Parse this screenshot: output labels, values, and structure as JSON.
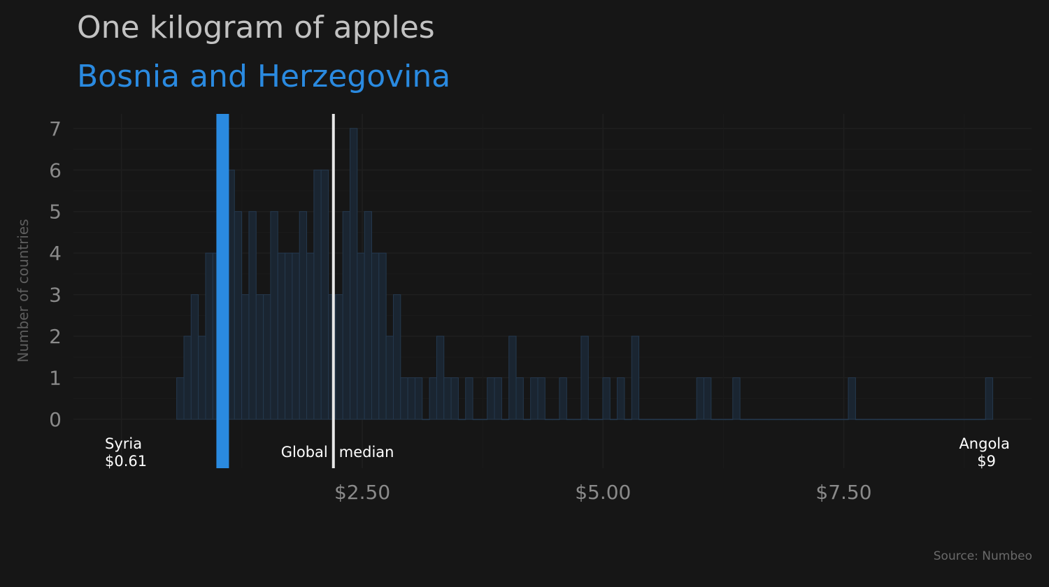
{
  "title": "One kilogram of apples",
  "subtitle": "Bosnia and Herzegovina",
  "source": "Source: Numbeo",
  "colors": {
    "background": "#161616",
    "bar_fill": "#1a2531",
    "bar_stroke": "#24384d",
    "highlight": "#2a8ae0",
    "median": "#e8e8e8",
    "grid": "#1f1f1f",
    "text": "#8a8a8a"
  },
  "chart_data": {
    "type": "bar",
    "title": "One kilogram of apples",
    "subtitle": "Bosnia and Herzegovina",
    "xlabel": "",
    "ylabel": "Number of countries",
    "x_ticks": [
      2.5,
      5.0,
      7.5
    ],
    "x_tick_labels": [
      "$2.50",
      "$5.00",
      "$7.50"
    ],
    "y_ticks": [
      0,
      1,
      2,
      3,
      4,
      5,
      6,
      7
    ],
    "xlim": [
      -0.5,
      9.45
    ],
    "ylim": [
      0,
      7.35
    ],
    "bin_width": 0.075,
    "x": [
      0.61,
      0.685,
      0.76,
      0.835,
      0.91,
      0.985,
      1.06,
      1.135,
      1.21,
      1.285,
      1.36,
      1.435,
      1.51,
      1.585,
      1.66,
      1.735,
      1.81,
      1.885,
      1.96,
      2.035,
      2.11,
      2.185,
      2.26,
      2.335,
      2.41,
      2.485,
      2.56,
      2.635,
      2.71,
      2.785,
      2.86,
      2.935,
      3.01,
      3.085,
      3.16,
      3.235,
      3.31,
      3.385,
      3.46,
      3.535,
      3.61,
      3.685,
      3.76,
      3.835,
      3.91,
      3.985,
      4.06,
      4.135,
      4.21,
      4.285,
      4.36,
      4.435,
      4.51,
      4.585,
      4.66,
      4.735,
      4.81,
      4.885,
      4.96,
      5.035,
      5.11,
      5.185,
      5.26,
      5.335,
      5.41,
      5.485,
      5.56,
      5.635,
      5.71,
      5.785,
      5.86,
      5.935,
      6.01,
      6.085,
      6.16,
      6.235,
      6.31,
      6.385,
      6.46,
      6.535,
      6.61,
      6.685,
      6.76,
      6.835,
      6.91,
      6.985,
      7.06,
      7.135,
      7.21,
      7.285,
      7.36,
      7.435,
      7.51,
      7.585,
      7.66,
      7.735,
      7.81,
      7.885,
      7.96,
      8.035,
      8.11,
      8.185,
      8.26,
      8.335,
      8.41,
      8.485,
      8.56,
      8.635,
      8.71,
      8.785,
      8.86,
      8.935,
      9.01
    ],
    "values": [
      1,
      2,
      3,
      2,
      4,
      4,
      5,
      6,
      5,
      3,
      5,
      3,
      3,
      5,
      4,
      4,
      4,
      5,
      4,
      6,
      6,
      3,
      3,
      5,
      7,
      4,
      5,
      4,
      4,
      2,
      3,
      1,
      1,
      1,
      0,
      1,
      2,
      1,
      1,
      0,
      1,
      0,
      0,
      1,
      1,
      0,
      2,
      1,
      0,
      1,
      1,
      0,
      0,
      1,
      0,
      0,
      2,
      0,
      0,
      1,
      0,
      1,
      0,
      2,
      0,
      0,
      0,
      0,
      0,
      0,
      0,
      0,
      1,
      1,
      0,
      0,
      0,
      1,
      0,
      0,
      0,
      0,
      0,
      0,
      0,
      0,
      0,
      0,
      0,
      0,
      0,
      0,
      0,
      1,
      0,
      0,
      0,
      0,
      0,
      0,
      0,
      0,
      0,
      0,
      0,
      0,
      0,
      0,
      0,
      0,
      0,
      0,
      1
    ],
    "highlight": {
      "label": "Bosnia and Herzegovina",
      "x": 1.05
    },
    "median": {
      "label_left": "Global",
      "label_right": "median",
      "x": 2.2
    },
    "annotations": [
      {
        "name": "Syria",
        "value": "$0.61",
        "x": 0.61,
        "align": "left"
      },
      {
        "name": "Angola",
        "value": "$9",
        "x": 9.0,
        "align": "right"
      }
    ]
  }
}
